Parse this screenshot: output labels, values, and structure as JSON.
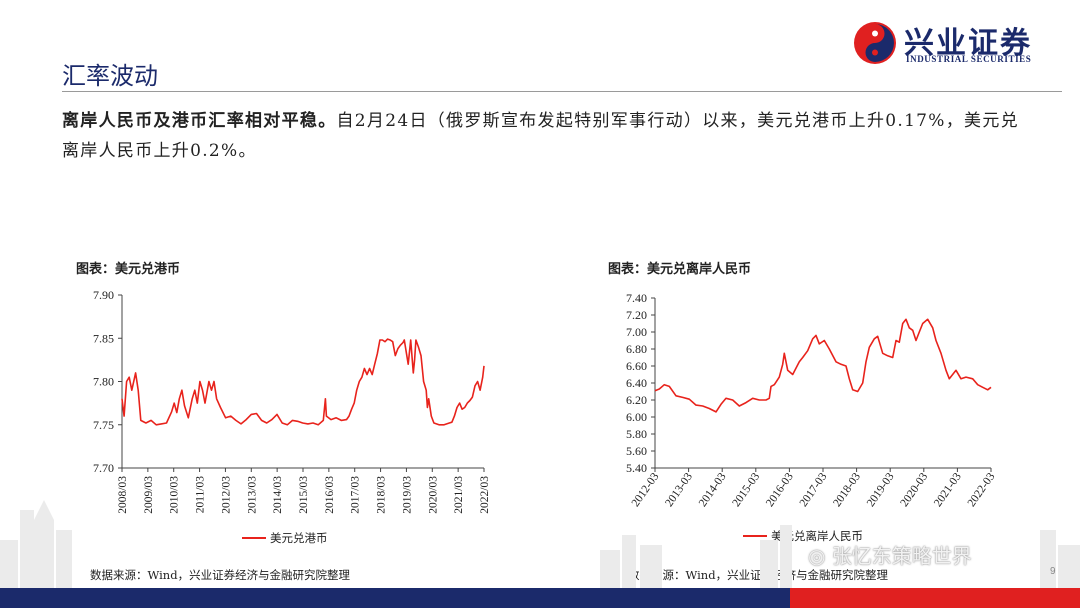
{
  "header": {
    "logo_name": "兴业证券",
    "logo_sub": "INDUSTRIAL SECURITIES",
    "page_title": "汇率波动"
  },
  "paragraph": {
    "bold": "离岸人民币及港币汇率相对平稳。",
    "rest": "自2月24日（俄罗斯宣布发起特别军事行动）以来，美元兑港币上升0.17%，美元兑离岸人民币上升0.2%。"
  },
  "footer": {
    "page_number": "9",
    "watermark": "张忆东策略世界"
  },
  "colors": {
    "navy": "#1b2a6b",
    "red": "#e02020",
    "line": "#e8231c"
  },
  "chart_data": [
    {
      "type": "line",
      "title": "图表：美元兑港币",
      "source": "数据来源：Wind，兴业证券经济与金融研究院整理",
      "x_ticks": [
        "2008/03",
        "2009/03",
        "2010/03",
        "2011/03",
        "2012/03",
        "2013/03",
        "2014/03",
        "2015/03",
        "2016/03",
        "2017/03",
        "2018/03",
        "2019/03",
        "2020/03",
        "2021/03",
        "2022/03"
      ],
      "x_range": [
        2008.17,
        2022.25
      ],
      "ylim": [
        7.7,
        7.9
      ],
      "y_ticks": [
        "7.70",
        "7.75",
        "7.80",
        "7.85",
        "7.90"
      ],
      "series": [
        {
          "name": "美元兑港币",
          "color": "#e8231c",
          "points": [
            [
              2008.17,
              7.78
            ],
            [
              2008.25,
              7.76
            ],
            [
              2008.35,
              7.8
            ],
            [
              2008.45,
              7.805
            ],
            [
              2008.55,
              7.79
            ],
            [
              2008.7,
              7.81
            ],
            [
              2008.8,
              7.79
            ],
            [
              2008.9,
              7.755
            ],
            [
              2009.1,
              7.752
            ],
            [
              2009.3,
              7.755
            ],
            [
              2009.5,
              7.75
            ],
            [
              2009.7,
              7.751
            ],
            [
              2009.9,
              7.752
            ],
            [
              2010.1,
              7.765
            ],
            [
              2010.2,
              7.775
            ],
            [
              2010.3,
              7.764
            ],
            [
              2010.4,
              7.78
            ],
            [
              2010.5,
              7.79
            ],
            [
              2010.6,
              7.772
            ],
            [
              2010.75,
              7.758
            ],
            [
              2010.9,
              7.78
            ],
            [
              2011.0,
              7.79
            ],
            [
              2011.1,
              7.775
            ],
            [
              2011.2,
              7.8
            ],
            [
              2011.3,
              7.79
            ],
            [
              2011.4,
              7.775
            ],
            [
              2011.55,
              7.8
            ],
            [
              2011.65,
              7.79
            ],
            [
              2011.75,
              7.8
            ],
            [
              2011.85,
              7.78
            ],
            [
              2012.0,
              7.77
            ],
            [
              2012.2,
              7.758
            ],
            [
              2012.4,
              7.76
            ],
            [
              2012.6,
              7.755
            ],
            [
              2012.8,
              7.751
            ],
            [
              2013.0,
              7.756
            ],
            [
              2013.2,
              7.762
            ],
            [
              2013.4,
              7.763
            ],
            [
              2013.6,
              7.755
            ],
            [
              2013.8,
              7.752
            ],
            [
              2014.0,
              7.756
            ],
            [
              2014.2,
              7.762
            ],
            [
              2014.4,
              7.752
            ],
            [
              2014.6,
              7.75
            ],
            [
              2014.8,
              7.755
            ],
            [
              2015.0,
              7.754
            ],
            [
              2015.2,
              7.752
            ],
            [
              2015.4,
              7.751
            ],
            [
              2015.6,
              7.752
            ],
            [
              2015.8,
              7.75
            ],
            [
              2016.0,
              7.755
            ],
            [
              2016.08,
              7.78
            ],
            [
              2016.12,
              7.76
            ],
            [
              2016.3,
              7.756
            ],
            [
              2016.5,
              7.758
            ],
            [
              2016.7,
              7.755
            ],
            [
              2016.9,
              7.756
            ],
            [
              2017.0,
              7.76
            ],
            [
              2017.1,
              7.768
            ],
            [
              2017.2,
              7.775
            ],
            [
              2017.3,
              7.79
            ],
            [
              2017.4,
              7.8
            ],
            [
              2017.5,
              7.805
            ],
            [
              2017.6,
              7.815
            ],
            [
              2017.7,
              7.808
            ],
            [
              2017.8,
              7.815
            ],
            [
              2017.9,
              7.808
            ],
            [
              2018.0,
              7.82
            ],
            [
              2018.1,
              7.832
            ],
            [
              2018.2,
              7.848
            ],
            [
              2018.3,
              7.848
            ],
            [
              2018.4,
              7.846
            ],
            [
              2018.5,
              7.849
            ],
            [
              2018.6,
              7.848
            ],
            [
              2018.7,
              7.846
            ],
            [
              2018.8,
              7.83
            ],
            [
              2018.9,
              7.838
            ],
            [
              2019.0,
              7.842
            ],
            [
              2019.1,
              7.845
            ],
            [
              2019.15,
              7.848
            ],
            [
              2019.3,
              7.82
            ],
            [
              2019.4,
              7.848
            ],
            [
              2019.5,
              7.81
            ],
            [
              2019.55,
              7.825
            ],
            [
              2019.6,
              7.848
            ],
            [
              2019.7,
              7.84
            ],
            [
              2019.8,
              7.83
            ],
            [
              2019.9,
              7.8
            ],
            [
              2020.0,
              7.79
            ],
            [
              2020.05,
              7.77
            ],
            [
              2020.1,
              7.78
            ],
            [
              2020.2,
              7.76
            ],
            [
              2020.3,
              7.752
            ],
            [
              2020.5,
              7.75
            ],
            [
              2020.7,
              7.75
            ],
            [
              2020.9,
              7.752
            ],
            [
              2021.0,
              7.753
            ],
            [
              2021.1,
              7.76
            ],
            [
              2021.2,
              7.77
            ],
            [
              2021.3,
              7.775
            ],
            [
              2021.4,
              7.768
            ],
            [
              2021.5,
              7.77
            ],
            [
              2021.6,
              7.775
            ],
            [
              2021.7,
              7.778
            ],
            [
              2021.8,
              7.782
            ],
            [
              2021.9,
              7.795
            ],
            [
              2022.0,
              7.8
            ],
            [
              2022.1,
              7.79
            ],
            [
              2022.2,
              7.805
            ],
            [
              2022.25,
              7.818
            ]
          ]
        }
      ]
    },
    {
      "type": "line",
      "title": "图表：美元兑离岸人民币",
      "source": "数据来源：Wind，兴业证券经济与金融研究院整理",
      "x_ticks": [
        "2012-03",
        "2013-03",
        "2014-03",
        "2015-03",
        "2016-03",
        "2017-03",
        "2018-03",
        "2019-03",
        "2020-03",
        "2021-03",
        "2022-03"
      ],
      "x_range": [
        2012.17,
        2022.25
      ],
      "ylim": [
        5.4,
        7.4
      ],
      "y_ticks": [
        "5.40",
        "5.60",
        "5.80",
        "6.00",
        "6.20",
        "6.40",
        "6.60",
        "6.80",
        "7.00",
        "7.20",
        "7.40"
      ],
      "series": [
        {
          "name": "美元兑离岸人民币",
          "color": "#e8231c",
          "points": [
            [
              2012.17,
              6.31
            ],
            [
              2012.3,
              6.33
            ],
            [
              2012.45,
              6.38
            ],
            [
              2012.6,
              6.36
            ],
            [
              2012.8,
              6.25
            ],
            [
              2013.0,
              6.23
            ],
            [
              2013.2,
              6.21
            ],
            [
              2013.4,
              6.14
            ],
            [
              2013.6,
              6.13
            ],
            [
              2013.8,
              6.1
            ],
            [
              2014.0,
              6.06
            ],
            [
              2014.15,
              6.15
            ],
            [
              2014.3,
              6.22
            ],
            [
              2014.5,
              6.2
            ],
            [
              2014.7,
              6.13
            ],
            [
              2014.9,
              6.17
            ],
            [
              2015.1,
              6.22
            ],
            [
              2015.3,
              6.2
            ],
            [
              2015.5,
              6.2
            ],
            [
              2015.6,
              6.22
            ],
            [
              2015.65,
              6.36
            ],
            [
              2015.75,
              6.38
            ],
            [
              2015.9,
              6.47
            ],
            [
              2016.0,
              6.62
            ],
            [
              2016.05,
              6.75
            ],
            [
              2016.15,
              6.55
            ],
            [
              2016.3,
              6.5
            ],
            [
              2016.5,
              6.65
            ],
            [
              2016.6,
              6.7
            ],
            [
              2016.75,
              6.78
            ],
            [
              2016.9,
              6.92
            ],
            [
              2017.0,
              6.96
            ],
            [
              2017.1,
              6.86
            ],
            [
              2017.25,
              6.9
            ],
            [
              2017.4,
              6.8
            ],
            [
              2017.6,
              6.65
            ],
            [
              2017.75,
              6.62
            ],
            [
              2017.9,
              6.6
            ],
            [
              2018.0,
              6.45
            ],
            [
              2018.1,
              6.32
            ],
            [
              2018.25,
              6.3
            ],
            [
              2018.4,
              6.4
            ],
            [
              2018.5,
              6.65
            ],
            [
              2018.6,
              6.82
            ],
            [
              2018.75,
              6.92
            ],
            [
              2018.85,
              6.95
            ],
            [
              2019.0,
              6.75
            ],
            [
              2019.15,
              6.72
            ],
            [
              2019.3,
              6.7
            ],
            [
              2019.4,
              6.9
            ],
            [
              2019.5,
              6.88
            ],
            [
              2019.6,
              7.1
            ],
            [
              2019.7,
              7.15
            ],
            [
              2019.8,
              7.05
            ],
            [
              2019.9,
              7.02
            ],
            [
              2020.0,
              6.9
            ],
            [
              2020.1,
              7.0
            ],
            [
              2020.2,
              7.1
            ],
            [
              2020.35,
              7.15
            ],
            [
              2020.5,
              7.05
            ],
            [
              2020.6,
              6.9
            ],
            [
              2020.75,
              6.75
            ],
            [
              2020.9,
              6.55
            ],
            [
              2021.0,
              6.45
            ],
            [
              2021.2,
              6.55
            ],
            [
              2021.35,
              6.45
            ],
            [
              2021.5,
              6.47
            ],
            [
              2021.7,
              6.45
            ],
            [
              2021.85,
              6.38
            ],
            [
              2022.0,
              6.35
            ],
            [
              2022.15,
              6.32
            ],
            [
              2022.25,
              6.35
            ]
          ]
        }
      ]
    }
  ]
}
